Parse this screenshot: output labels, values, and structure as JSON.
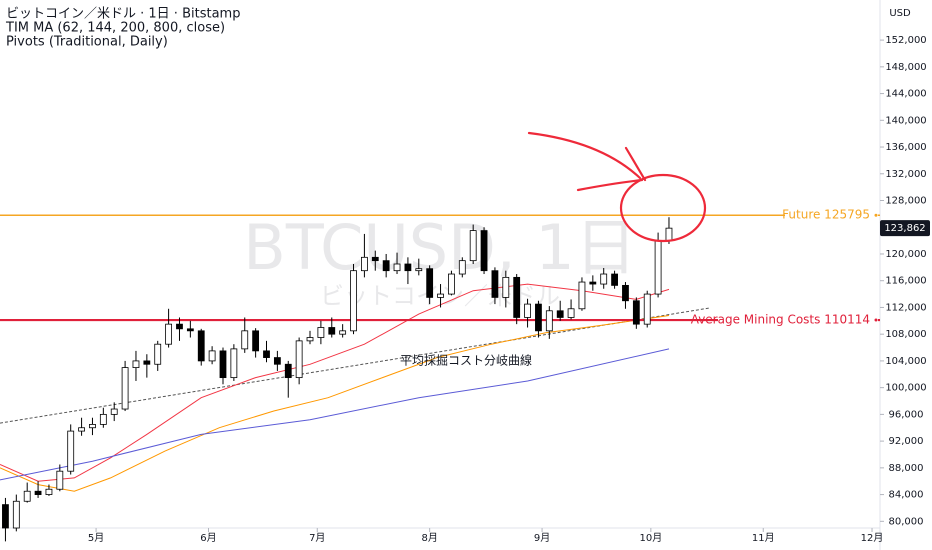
{
  "chart_data": {
    "type": "candlestick",
    "header": [
      "ビットコイン／米ドル · 1日 · Bitstamp",
      "TIM MA (62, 144, 200, 800, close)",
      "Pivots (Traditional, Daily)"
    ],
    "currency": "USD",
    "watermark": [
      "BTCUSD, 1日",
      "ビットコイン／米ドル"
    ],
    "annotation": "平均採掘コスト分岐曲線",
    "xlim": [
      94.5,
      337.2
    ],
    "xticks": [
      {
        "value": 121,
        "label": "5月"
      },
      {
        "value": 152,
        "label": "6月"
      },
      {
        "value": 182,
        "label": "7月"
      },
      {
        "value": 213,
        "label": "8月"
      },
      {
        "value": 244,
        "label": "9月"
      },
      {
        "value": 274,
        "label": "10月"
      },
      {
        "value": 305,
        "label": "11月"
      },
      {
        "value": 335,
        "label": "12月"
      }
    ],
    "ylim": [
      79000,
      158000
    ],
    "yticks": [
      {
        "value": 80000,
        "label": "80,000"
      },
      {
        "value": 84000,
        "label": "84,000"
      },
      {
        "value": 88000,
        "label": "88,000"
      },
      {
        "value": 92000,
        "label": "92,000"
      },
      {
        "value": 96000,
        "label": "96,000"
      },
      {
        "value": 100000,
        "label": "100,000"
      },
      {
        "value": 104000,
        "label": "104,000"
      },
      {
        "value": 108000,
        "label": "108,000"
      },
      {
        "value": 112000,
        "label": "112,000"
      },
      {
        "value": 116000,
        "label": "116,000"
      },
      {
        "value": 120000,
        "label": "120,000"
      },
      {
        "value": 124000,
        "label": "124,000"
      },
      {
        "value": 128000,
        "label": "128,000"
      },
      {
        "value": 132000,
        "label": "132,000"
      },
      {
        "value": 136000,
        "label": "136,000"
      },
      {
        "value": 140000,
        "label": "140,000"
      },
      {
        "value": 144000,
        "label": "144,000"
      },
      {
        "value": 148000,
        "label": "148,000"
      },
      {
        "value": 152000,
        "label": "152,000"
      }
    ],
    "x": [
      96,
      99,
      102,
      105,
      108,
      111,
      114,
      117,
      120,
      123,
      126,
      129,
      132,
      135,
      138,
      141,
      144,
      147,
      150,
      153,
      156,
      159,
      162,
      165,
      168,
      171,
      174,
      177,
      180,
      183,
      186,
      189,
      192,
      195,
      198,
      201,
      204,
      207,
      210,
      213,
      216,
      219,
      222,
      225,
      228,
      231,
      234,
      237,
      240,
      243,
      246,
      249,
      252,
      255,
      258,
      261,
      264,
      267,
      270,
      273,
      276,
      279
    ],
    "open": [
      82500,
      79000,
      83000,
      84500,
      84000,
      84800,
      87500,
      93500,
      94000,
      94500,
      96000,
      96800,
      103000,
      104000,
      103500,
      106500,
      109500,
      108800,
      108500,
      104000,
      105500,
      101500,
      105800,
      108500,
      105500,
      104500,
      103500,
      101500,
      107000,
      107500,
      109000,
      108000,
      108500,
      117500,
      119500,
      119000,
      117500,
      118500,
      117500,
      117800,
      113500,
      114000,
      117000,
      119000,
      123500,
      117500,
      113500,
      116500,
      110500,
      112500,
      108500,
      111500,
      110500,
      111800,
      115800,
      115500,
      117000,
      115300,
      113000,
      109500,
      114000,
      122000
    ],
    "high": [
      83500,
      84000,
      85800,
      86000,
      85500,
      88500,
      94500,
      95500,
      95500,
      97000,
      97800,
      104000,
      105500,
      105000,
      107000,
      111800,
      110500,
      110000,
      108800,
      106200,
      106000,
      106500,
      110500,
      108900,
      107000,
      105500,
      104000,
      107500,
      108500,
      110000,
      110500,
      109500,
      118500,
      123000,
      120500,
      120000,
      120200,
      119500,
      119300,
      118300,
      115500,
      117500,
      119500,
      124400,
      124000,
      118000,
      117500,
      117000,
      113300,
      113000,
      112200,
      113000,
      113200,
      116500,
      116800,
      117900,
      117500,
      115800,
      113500,
      114500,
      123200,
      125500
    ],
    "low": [
      77000,
      78500,
      82800,
      83500,
      83800,
      84500,
      87000,
      92800,
      92900,
      94000,
      95000,
      96500,
      101000,
      101500,
      102500,
      106000,
      107000,
      107500,
      103300,
      103500,
      100500,
      101000,
      105200,
      104500,
      103800,
      102500,
      98500,
      100500,
      106500,
      106500,
      107500,
      107500,
      108000,
      116500,
      117500,
      116500,
      117000,
      115500,
      116800,
      112500,
      112000,
      113800,
      116500,
      118500,
      117000,
      112500,
      112000,
      109500,
      109000,
      107500,
      107300,
      110000,
      110200,
      111500,
      114500,
      114800,
      114800,
      111800,
      108800,
      109000,
      113500,
      121500
    ],
    "close": [
      79000,
      83000,
      84500,
      84000,
      84800,
      87500,
      93500,
      94000,
      94500,
      96000,
      96800,
      103000,
      104000,
      103500,
      106500,
      109500,
      108800,
      108500,
      104000,
      105500,
      101500,
      105800,
      108500,
      105500,
      104500,
      103500,
      101500,
      107000,
      107500,
      109000,
      108000,
      108500,
      117500,
      119500,
      119000,
      117500,
      118500,
      117500,
      117800,
      113500,
      114000,
      117000,
      119000,
      123500,
      117500,
      113500,
      116500,
      110500,
      112500,
      108500,
      111500,
      110500,
      111800,
      115800,
      115500,
      117000,
      115300,
      113000,
      109500,
      114000,
      122000,
      123862
    ],
    "close_label": "123,862",
    "up_color": "#ffffff",
    "down_color": "#000000",
    "wick_color": "#000000",
    "series": [
      {
        "color": "#f23645",
        "x": [
          94.5,
          105,
          115,
          125,
          135,
          150,
          165,
          180,
          195,
          210,
          225,
          240,
          255,
          270,
          279
        ],
        "values": [
          88500,
          86000,
          86500,
          89500,
          93000,
          98500,
          101500,
          103500,
          106500,
          111000,
          114500,
          115500,
          114500,
          113200,
          114700
        ]
      },
      {
        "color": "#ff9800",
        "x": [
          94.5,
          105,
          115,
          125,
          140,
          155,
          170,
          185,
          200,
          215,
          230,
          245,
          260,
          279
        ],
        "values": [
          88000,
          85500,
          84500,
          86500,
          90500,
          94000,
          96500,
          98500,
          101500,
          104500,
          106500,
          108200,
          109300,
          110800
        ]
      },
      {
        "color": "#5b5bd6",
        "x": [
          94.5,
          120,
          150,
          180,
          210,
          240,
          279
        ],
        "values": [
          86200,
          89000,
          93000,
          95200,
          98500,
          101000,
          105800
        ]
      }
    ],
    "trendline": {
      "color": "#555555",
      "x": [
        94.5,
        290
      ],
      "values": [
        94700,
        111900
      ]
    },
    "levels": [
      {
        "name": "Future 125795",
        "value": 125795,
        "color": "#f5a623"
      },
      {
        "name": "Average Mining Costs 110114",
        "value": 110114,
        "color": "#e0203a"
      }
    ]
  }
}
